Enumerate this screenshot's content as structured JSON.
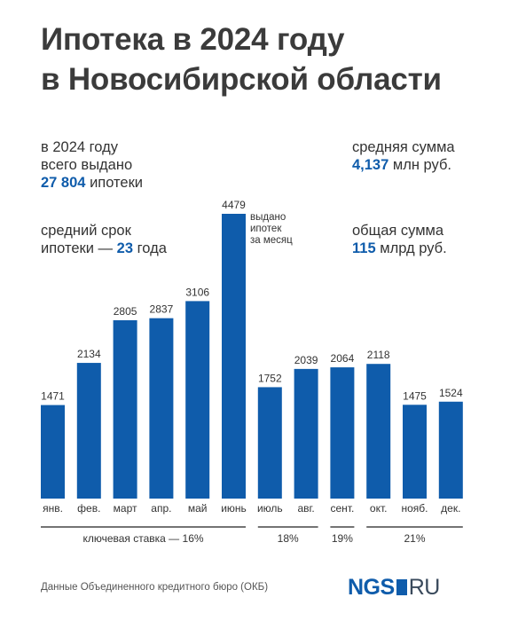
{
  "title_line1": "Ипотека в 2024 году",
  "title_line2": "в Новосибирской области",
  "stats": {
    "issued": {
      "line1": "в 2024 году",
      "line2": "всего выдано",
      "value": "27 804",
      "suffix": "ипотеки"
    },
    "term": {
      "line1": "средний срок",
      "prefix": "ипотеки —",
      "value": "23",
      "suffix": "года"
    },
    "avg_sum": {
      "line1": "средняя сумма",
      "value": "4,137",
      "suffix": "млн руб."
    },
    "total_sum": {
      "line1": "общая сумма",
      "value": "115",
      "suffix": "млрд руб."
    }
  },
  "chart_data": {
    "type": "bar",
    "categories": [
      "янв.",
      "фев.",
      "март",
      "апр.",
      "май",
      "июнь",
      "июль",
      "авг.",
      "сент.",
      "окт.",
      "нояб.",
      "дек."
    ],
    "values": [
      1471,
      2134,
      2805,
      2837,
      3106,
      4479,
      1752,
      2039,
      2064,
      2118,
      1475,
      1524
    ],
    "annotation": {
      "category": "июнь",
      "lines": [
        "выдано",
        "ипотек",
        "за месяц"
      ]
    },
    "ylim": [
      0,
      4479
    ],
    "bar_color": "#0f5cab",
    "key_rate_groups": [
      {
        "label": "ключевая ставка — 16%",
        "from": "янв.",
        "to": "июнь"
      },
      {
        "label": "18%",
        "from": "июль",
        "to": "авг."
      },
      {
        "label": "19%",
        "from": "сент.",
        "to": "сент."
      },
      {
        "label": "21%",
        "from": "окт.",
        "to": "дек."
      }
    ]
  },
  "footer": {
    "source": "Данные Объединенного кредитного бюро (ОКБ)",
    "logo_main": "NGS",
    "logo_suffix": "RU"
  }
}
